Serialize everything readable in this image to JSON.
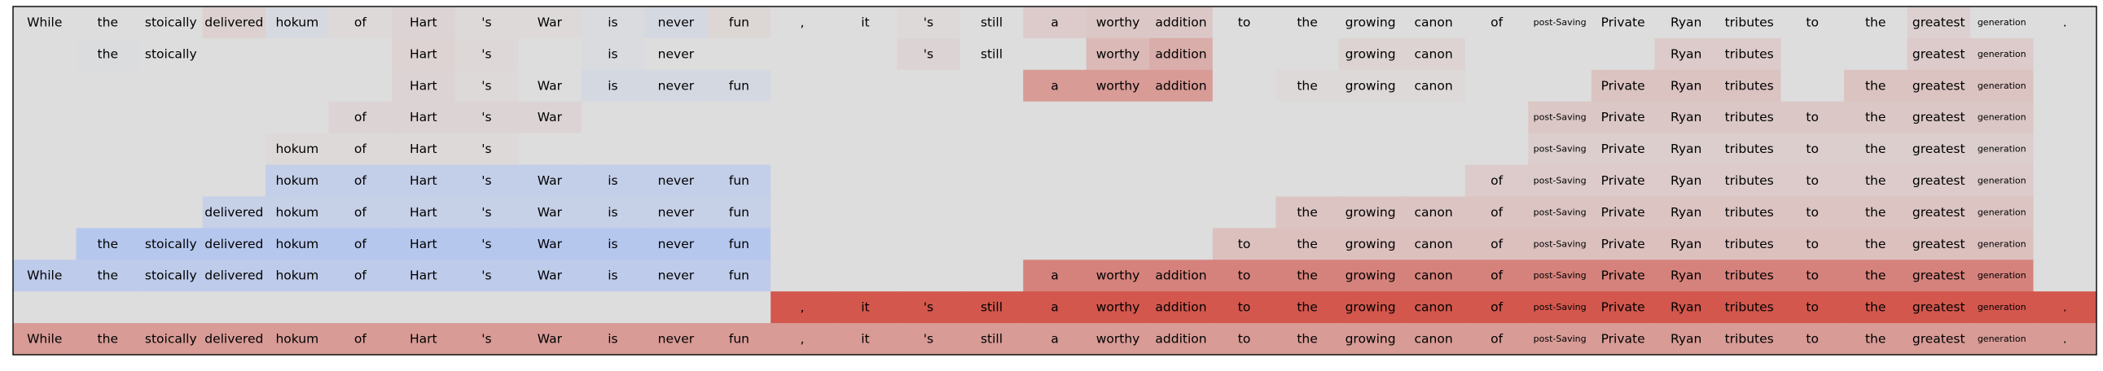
{
  "chart_data": {
    "type": "heatmap",
    "title": "",
    "xlabel": "",
    "ylabel": "",
    "colormap": {
      "name": "diverging-coolwarm",
      "negative": "#8fb1fe",
      "neutral": "#dddddd",
      "positive": "#d24b40"
    },
    "tokens": [
      "While",
      "the",
      "stoically",
      "delivered",
      "hokum",
      "of",
      "Hart",
      "'s",
      "War",
      "is",
      "never",
      "fun",
      ",",
      "it",
      "'s",
      "still",
      "a",
      "worthy",
      "addition",
      "to",
      "the",
      "growing",
      "canon",
      "of",
      "post-Saving",
      "Private",
      "Ryan",
      "tributes",
      "to",
      "the",
      "greatest",
      "generation",
      "."
    ],
    "small_tokens": [
      "post-Saving",
      "generation"
    ],
    "rows": [
      {
        "present": [
          1,
          1,
          1,
          1,
          1,
          1,
          1,
          1,
          1,
          1,
          1,
          1,
          1,
          1,
          1,
          1,
          1,
          1,
          1,
          1,
          1,
          1,
          1,
          1,
          1,
          1,
          1,
          1,
          1,
          1,
          1,
          1,
          1
        ],
        "values": [
          0,
          0,
          0,
          0.08,
          -0.08,
          0.03,
          0.06,
          0.03,
          0.03,
          -0.04,
          -0.12,
          0.05,
          0,
          0,
          0.03,
          0,
          0.12,
          0.15,
          0.15,
          0,
          0,
          0,
          0,
          0,
          0,
          0,
          0,
          0,
          0,
          0,
          0.08,
          0,
          0
        ]
      },
      {
        "present": [
          0,
          1,
          1,
          0,
          0,
          0,
          1,
          1,
          0,
          1,
          1,
          0,
          0,
          0,
          1,
          1,
          0,
          1,
          1,
          0,
          0,
          1,
          1,
          0,
          0,
          0,
          1,
          1,
          0,
          0,
          1,
          1,
          0
        ],
        "values": [
          0,
          -0.03,
          0,
          0,
          0,
          0,
          0.07,
          0.04,
          0,
          -0.05,
          0,
          0,
          0,
          0,
          0.06,
          0,
          0,
          0.25,
          0.33,
          0,
          0,
          0.07,
          0.07,
          0,
          0,
          0,
          0.12,
          0.12,
          0,
          0,
          0.12,
          0.12,
          0
        ]
      },
      {
        "present": [
          0,
          0,
          0,
          0,
          0,
          0,
          1,
          1,
          1,
          1,
          1,
          1,
          0,
          0,
          0,
          0,
          1,
          1,
          1,
          0,
          1,
          1,
          1,
          0,
          0,
          1,
          1,
          1,
          0,
          1,
          1,
          1,
          0
        ],
        "values": [
          0,
          0,
          0,
          0,
          0,
          0,
          0.06,
          0.03,
          0,
          -0.12,
          -0.12,
          -0.12,
          0,
          0,
          0,
          0,
          0.45,
          0.45,
          0.45,
          0,
          0.03,
          0.03,
          0.03,
          0,
          0,
          0.18,
          0.18,
          0.18,
          0,
          0.18,
          0.18,
          0.18,
          0
        ]
      },
      {
        "present": [
          0,
          0,
          0,
          0,
          0,
          1,
          1,
          1,
          1,
          0,
          0,
          0,
          0,
          0,
          0,
          0,
          0,
          0,
          0,
          0,
          0,
          0,
          0,
          0,
          1,
          1,
          1,
          1,
          1,
          1,
          1,
          1,
          0
        ],
        "values": [
          0,
          0,
          0,
          0,
          0,
          0.06,
          0.06,
          0.06,
          0.06,
          0,
          0,
          0,
          0,
          0,
          0,
          0,
          0,
          0,
          0,
          0,
          0,
          0,
          0,
          0,
          0.15,
          0.15,
          0.15,
          0.15,
          0.15,
          0.15,
          0.15,
          0.15,
          0
        ]
      },
      {
        "present": [
          0,
          0,
          0,
          0,
          1,
          1,
          1,
          1,
          0,
          0,
          0,
          0,
          0,
          0,
          0,
          0,
          0,
          0,
          0,
          0,
          0,
          0,
          0,
          0,
          1,
          1,
          1,
          1,
          1,
          1,
          1,
          1,
          0
        ],
        "values": [
          0,
          0,
          0,
          0,
          0.03,
          0.03,
          0.03,
          0.03,
          0,
          0,
          0,
          0,
          0,
          0,
          0,
          0,
          0,
          0,
          0,
          0,
          0,
          0,
          0,
          0,
          0.1,
          0.1,
          0.1,
          0.1,
          0.1,
          0.1,
          0.1,
          0.1,
          0
        ]
      },
      {
        "present": [
          0,
          0,
          0,
          0,
          1,
          1,
          1,
          1,
          1,
          1,
          1,
          1,
          0,
          0,
          0,
          0,
          0,
          0,
          0,
          0,
          0,
          0,
          0,
          1,
          1,
          1,
          1,
          1,
          1,
          1,
          1,
          1,
          0
        ],
        "values": [
          0,
          0,
          0,
          0,
          -0.33,
          -0.33,
          -0.33,
          -0.33,
          -0.33,
          -0.33,
          -0.33,
          -0.33,
          0,
          0,
          0,
          0,
          0,
          0,
          0,
          0,
          0,
          0,
          0,
          0.12,
          0.12,
          0.12,
          0.12,
          0.12,
          0.12,
          0.12,
          0.12,
          0.12,
          0
        ]
      },
      {
        "present": [
          0,
          0,
          0,
          1,
          1,
          1,
          1,
          1,
          1,
          1,
          1,
          1,
          0,
          0,
          0,
          0,
          0,
          0,
          0,
          0,
          1,
          1,
          1,
          1,
          1,
          1,
          1,
          1,
          1,
          1,
          1,
          1,
          0
        ],
        "values": [
          0,
          0,
          0,
          -0.3,
          -0.3,
          -0.3,
          -0.3,
          -0.3,
          -0.3,
          -0.3,
          -0.3,
          -0.3,
          0,
          0,
          0,
          0,
          0,
          0,
          0,
          0,
          0.17,
          0.17,
          0.17,
          0.17,
          0.17,
          0.17,
          0.17,
          0.17,
          0.17,
          0.17,
          0.17,
          0.17,
          0
        ]
      },
      {
        "present": [
          0,
          1,
          1,
          1,
          1,
          1,
          1,
          1,
          1,
          1,
          1,
          1,
          0,
          0,
          0,
          0,
          0,
          0,
          0,
          1,
          1,
          1,
          1,
          1,
          1,
          1,
          1,
          1,
          1,
          1,
          1,
          1,
          0
        ],
        "values": [
          0,
          -0.5,
          -0.5,
          -0.5,
          -0.5,
          -0.5,
          -0.5,
          -0.5,
          -0.5,
          -0.5,
          -0.5,
          -0.5,
          0,
          0,
          0,
          0,
          0,
          0,
          0,
          0.2,
          0.2,
          0.2,
          0.2,
          0.2,
          0.2,
          0.2,
          0.2,
          0.2,
          0.2,
          0.2,
          0.2,
          0.2,
          0
        ]
      },
      {
        "present": [
          1,
          1,
          1,
          1,
          1,
          1,
          1,
          1,
          1,
          1,
          1,
          1,
          0,
          0,
          0,
          0,
          1,
          1,
          1,
          1,
          1,
          1,
          1,
          1,
          1,
          1,
          1,
          1,
          1,
          1,
          1,
          1,
          0
        ],
        "values": [
          -0.4,
          -0.4,
          -0.4,
          -0.4,
          -0.4,
          -0.4,
          -0.4,
          -0.4,
          -0.4,
          -0.4,
          -0.4,
          -0.4,
          0,
          0,
          0,
          0,
          0.62,
          0.62,
          0.62,
          0.62,
          0.62,
          0.62,
          0.62,
          0.62,
          0.62,
          0.62,
          0.62,
          0.62,
          0.62,
          0.62,
          0.62,
          0.62,
          0
        ]
      },
      {
        "present": [
          0,
          0,
          0,
          0,
          0,
          0,
          0,
          0,
          0,
          0,
          0,
          0,
          1,
          1,
          1,
          1,
          1,
          1,
          1,
          1,
          1,
          1,
          1,
          1,
          1,
          1,
          1,
          1,
          1,
          1,
          1,
          1,
          1
        ],
        "values": [
          0,
          0,
          0,
          0,
          0,
          0,
          0,
          0,
          0,
          0,
          0,
          0,
          0.92,
          0.92,
          0.92,
          0.92,
          0.92,
          0.92,
          0.92,
          0.92,
          0.92,
          0.92,
          0.92,
          0.92,
          0.92,
          0.92,
          0.92,
          0.92,
          0.92,
          0.92,
          0.92,
          0.92,
          0.92
        ]
      },
      {
        "present": [
          1,
          1,
          1,
          1,
          1,
          1,
          1,
          1,
          1,
          1,
          1,
          1,
          1,
          1,
          1,
          1,
          1,
          1,
          1,
          1,
          1,
          1,
          1,
          1,
          1,
          1,
          1,
          1,
          1,
          1,
          1,
          1,
          1
        ],
        "values": [
          0.45,
          0.45,
          0.45,
          0.45,
          0.45,
          0.45,
          0.45,
          0.45,
          0.45,
          0.45,
          0.45,
          0.45,
          0.45,
          0.45,
          0.45,
          0.45,
          0.45,
          0.45,
          0.45,
          0.45,
          0.45,
          0.45,
          0.45,
          0.45,
          0.45,
          0.45,
          0.45,
          0.45,
          0.45,
          0.45,
          0.45,
          0.45,
          0.45
        ]
      }
    ]
  }
}
